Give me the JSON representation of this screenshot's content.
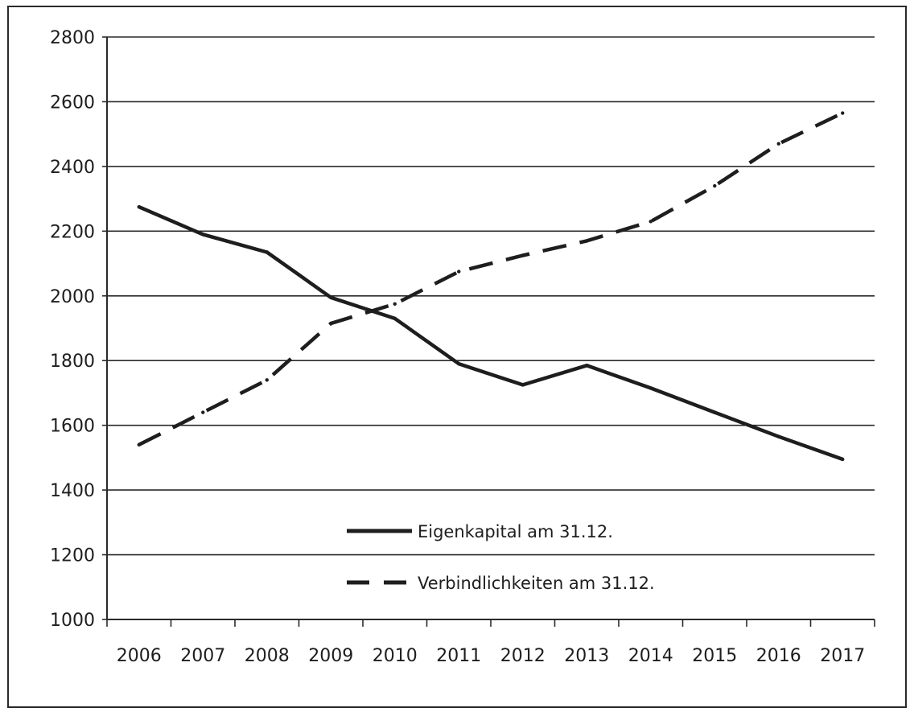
{
  "chart_data": {
    "type": "line",
    "title": "",
    "xlabel": "",
    "ylabel": "",
    "categories": [
      "2006",
      "2007",
      "2008",
      "2009",
      "2010",
      "2011",
      "2012",
      "2013",
      "2014",
      "2015",
      "2016",
      "2017"
    ],
    "ylim": [
      1000,
      2800
    ],
    "yticks": [
      1000,
      1200,
      1400,
      1600,
      1800,
      2000,
      2200,
      2400,
      2600,
      2800
    ],
    "grid": true,
    "legend_position": "bottom-center",
    "series": [
      {
        "name": "Eigenkapital am 31.12.",
        "style": "solid",
        "color": "#1e1e1e",
        "values": [
          2275,
          2190,
          2135,
          1995,
          1930,
          1790,
          1725,
          1785,
          1715,
          1640,
          1565,
          1495
        ]
      },
      {
        "name": "Verbindlichkeiten am 31.12.",
        "style": "dashed",
        "color": "#1e1e1e",
        "values": [
          1540,
          1640,
          1740,
          1915,
          1975,
          2075,
          2125,
          2170,
          2230,
          2340,
          2470,
          2565
        ]
      }
    ]
  }
}
